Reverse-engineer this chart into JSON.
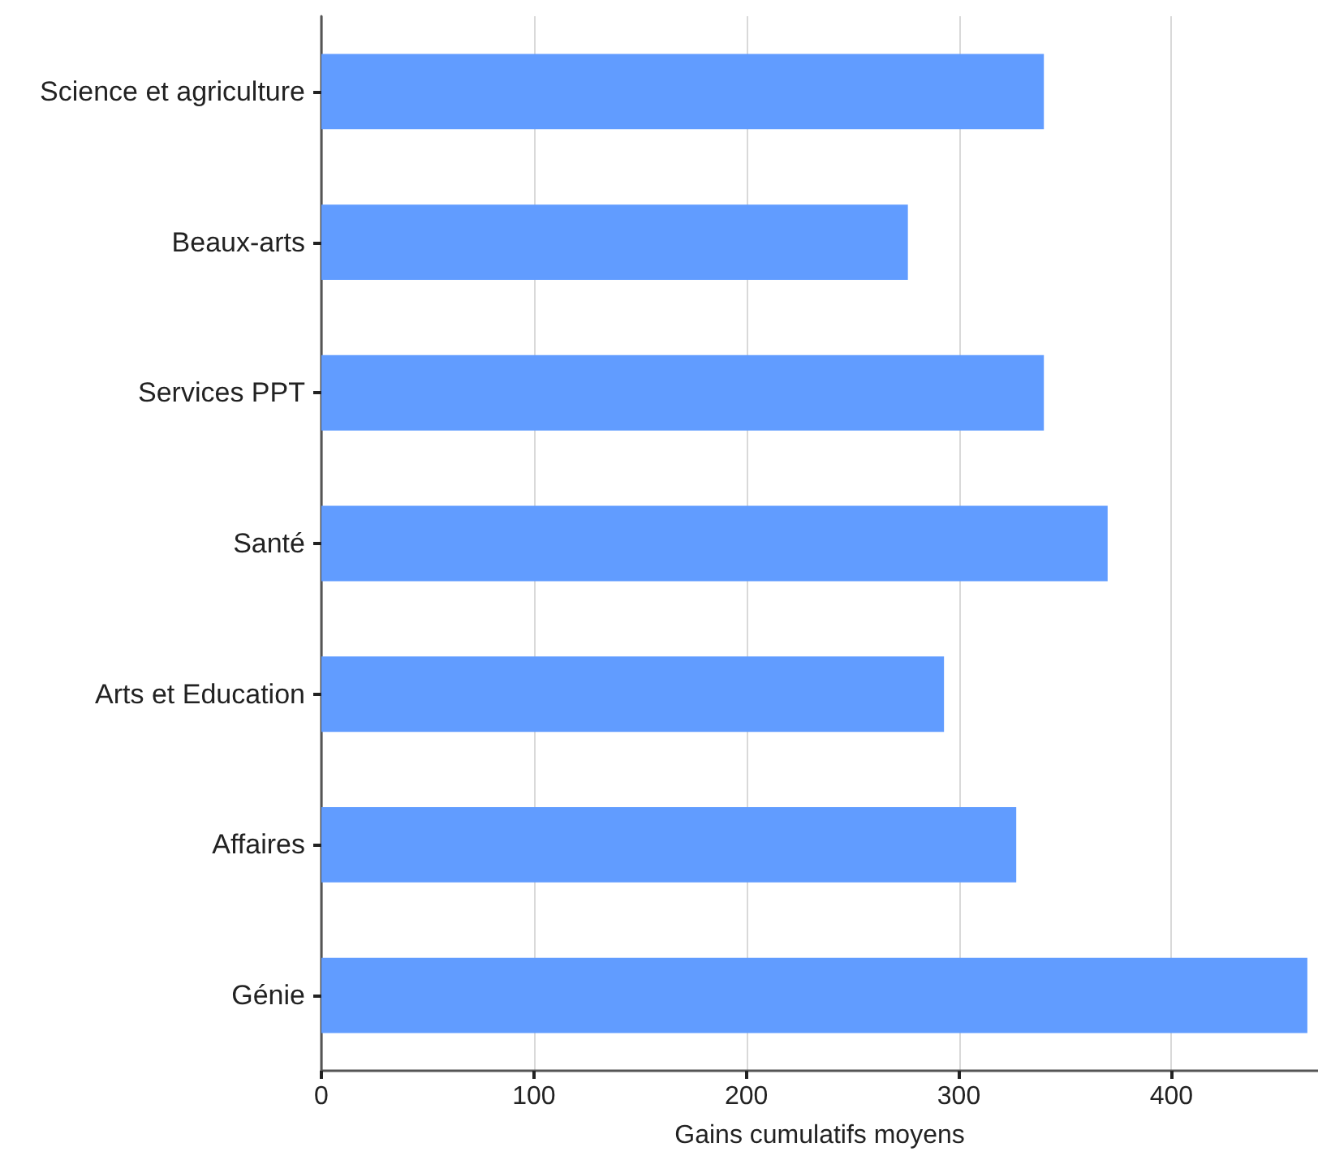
{
  "chart_data": {
    "type": "bar",
    "orientation": "horizontal",
    "xlabel": "Gains cumulatifs moyens",
    "categories": [
      "Science et agriculture",
      "Beaux-arts",
      "Services PPT",
      "Santé",
      "Arts et Education",
      "Affaires",
      "Génie"
    ],
    "values": [
      340,
      276,
      340,
      370,
      293,
      327,
      464
    ],
    "color": "#619cff",
    "xlim": [
      0,
      469
    ],
    "xticks": [
      0,
      100,
      200,
      300,
      400
    ],
    "grid": "x"
  }
}
